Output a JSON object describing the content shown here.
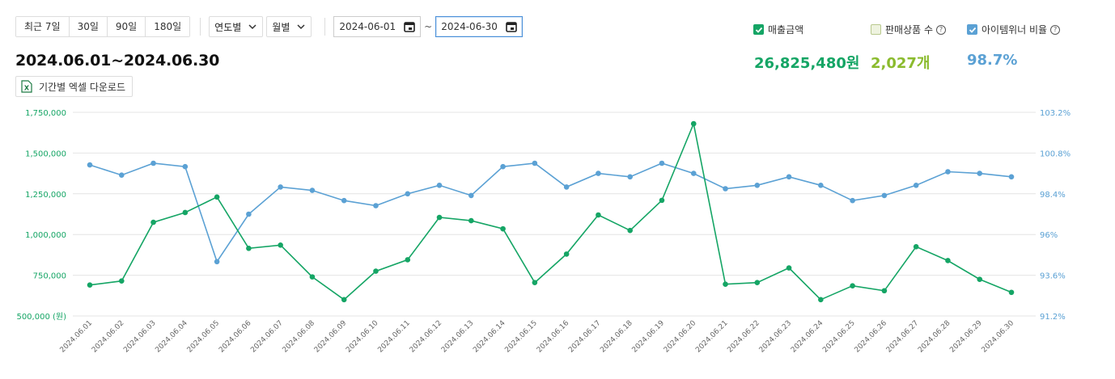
{
  "toolbar": {
    "range_buttons": [
      "최근 7일",
      "30일",
      "90일",
      "180일"
    ],
    "select_year": "연도별",
    "select_month": "월별",
    "date_from": "2024-06-01",
    "date_to": "2024-06-30",
    "tilde": "~"
  },
  "title": "2024.06.01~2024.06.30",
  "excel_button": "기간별 엑셀 다운로드",
  "legend": {
    "sales": {
      "label": "매출금액",
      "value": "26,825,480원",
      "color": "#15a565",
      "checked": true
    },
    "items": {
      "label": "판매상품 수",
      "value": "2,027개",
      "color": "#8bbb2e",
      "checked": false
    },
    "winner": {
      "label": "아이템위너 비율",
      "value": "98.7%",
      "color": "#5ba1d4",
      "checked": true
    }
  },
  "chart_data": {
    "type": "line",
    "x": [
      "2024.06.01",
      "2024.06.02",
      "2024.06.03",
      "2024.06.04",
      "2024.06.05",
      "2024.06.06",
      "2024.06.07",
      "2024.06.08",
      "2024.06.09",
      "2024.06.10",
      "2024.06.11",
      "2024.06.12",
      "2024.06.13",
      "2024.06.14",
      "2024.06.15",
      "2024.06.16",
      "2024.06.17",
      "2024.06.18",
      "2024.06.19",
      "2024.06.20",
      "2024.06.21",
      "2024.06.22",
      "2024.06.23",
      "2024.06.24",
      "2024.06.25",
      "2024.06.26",
      "2024.06.27",
      "2024.06.28",
      "2024.06.29",
      "2024.06.30"
    ],
    "series": [
      {
        "name": "매출금액",
        "axis": "left",
        "color": "#15a565",
        "values": [
          690000,
          715000,
          1075000,
          1135000,
          1230000,
          915000,
          935000,
          740000,
          600000,
          775000,
          845000,
          1105000,
          1085000,
          1035000,
          705000,
          880000,
          1120000,
          1025000,
          1210000,
          1680000,
          695000,
          705000,
          795000,
          600000,
          685000,
          655000,
          925000,
          840000,
          725000,
          645000
        ]
      },
      {
        "name": "아이템위너 비율",
        "axis": "right",
        "color": "#5ba1d4",
        "values": [
          100.1,
          99.5,
          100.2,
          100.0,
          94.4,
          97.2,
          98.8,
          98.6,
          98.0,
          97.7,
          98.4,
          98.9,
          98.3,
          100.0,
          100.2,
          98.8,
          99.6,
          99.4,
          100.2,
          99.6,
          98.7,
          98.9,
          99.4,
          98.9,
          98.0,
          98.3,
          98.9,
          99.7,
          99.6,
          99.4
        ]
      }
    ],
    "y_left": {
      "ticks": [
        "500,000 (원)",
        "750,000",
        "1,000,000",
        "1,250,000",
        "1,500,000",
        "1,750,000"
      ],
      "ylim": [
        500000,
        1750000
      ]
    },
    "y_right": {
      "ticks": [
        "91.2%",
        "93.6%",
        "96%",
        "98.4%",
        "100.8%",
        "103.2%"
      ],
      "ylim": [
        91.2,
        103.2
      ]
    },
    "grid": true
  }
}
